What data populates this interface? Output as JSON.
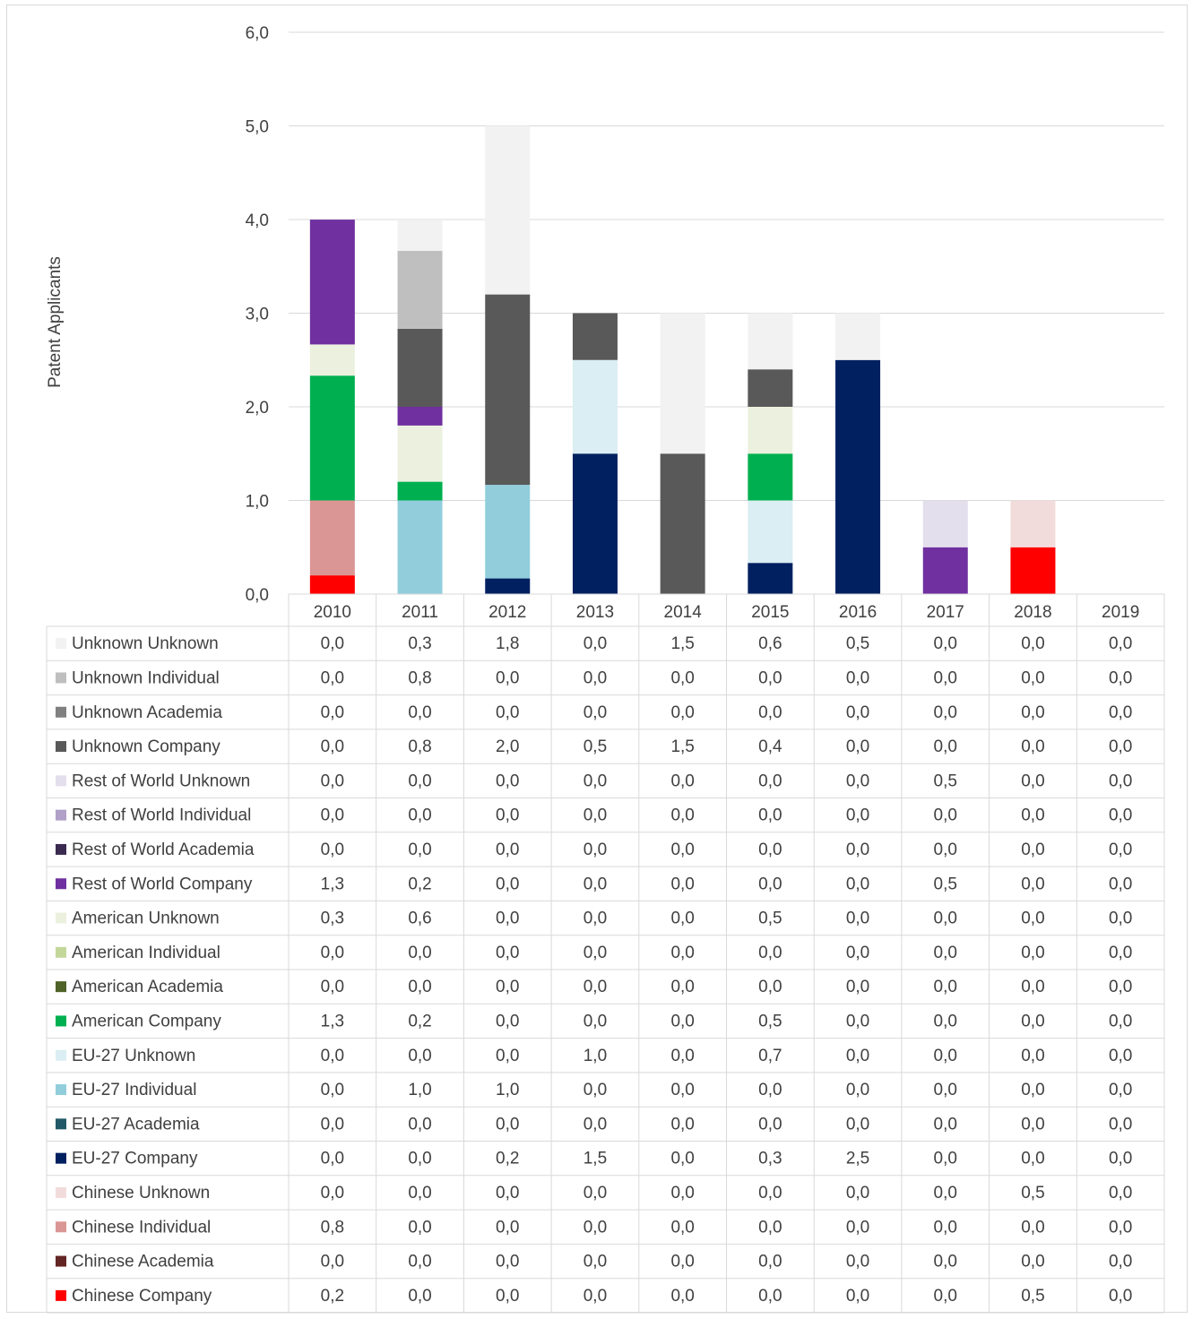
{
  "chart_data": {
    "type": "bar",
    "stacked": true,
    "ylabel": "Patent Applicants",
    "ylim": [
      0,
      6
    ],
    "yticks": [
      "0,0",
      "1,0",
      "2,0",
      "3,0",
      "4,0",
      "5,0",
      "6,0"
    ],
    "grid": true,
    "legend_placement": "data-table-left",
    "categories": [
      "2010",
      "2011",
      "2012",
      "2013",
      "2014",
      "2015",
      "2016",
      "2017",
      "2018",
      "2019"
    ],
    "series": [
      {
        "name": "Unknown Unknown",
        "color": "#f2f2f2",
        "values": [
          0.0,
          0.333,
          1.8,
          0.0,
          1.5,
          0.6,
          0.5,
          0.0,
          0.0,
          0.0
        ],
        "labels": [
          "0,0",
          "0,3",
          "1,8",
          "0,0",
          "1,5",
          "0,6",
          "0,5",
          "0,0",
          "0,0",
          "0,0"
        ]
      },
      {
        "name": "Unknown Individual",
        "color": "#bfbfbf",
        "values": [
          0.0,
          0.833,
          0.0,
          0.0,
          0.0,
          0.0,
          0.0,
          0.0,
          0.0,
          0.0
        ],
        "labels": [
          "0,0",
          "0,8",
          "0,0",
          "0,0",
          "0,0",
          "0,0",
          "0,0",
          "0,0",
          "0,0",
          "0,0"
        ]
      },
      {
        "name": "Unknown Academia",
        "color": "#808080",
        "values": [
          0.0,
          0.0,
          0.0,
          0.0,
          0.0,
          0.0,
          0.0,
          0.0,
          0.0,
          0.0
        ],
        "labels": [
          "0,0",
          "0,0",
          "0,0",
          "0,0",
          "0,0",
          "0,0",
          "0,0",
          "0,0",
          "0,0",
          "0,0"
        ]
      },
      {
        "name": "Unknown Company",
        "color": "#595959",
        "values": [
          0.0,
          0.833,
          2.033,
          0.5,
          1.5,
          0.4,
          0.0,
          0.0,
          0.0,
          0.0
        ],
        "labels": [
          "0,0",
          "0,8",
          "2,0",
          "0,5",
          "1,5",
          "0,4",
          "0,0",
          "0,0",
          "0,0",
          "0,0"
        ]
      },
      {
        "name": "Rest of World Unknown",
        "color": "#e4dfec",
        "values": [
          0.0,
          0.0,
          0.0,
          0.0,
          0.0,
          0.0,
          0.0,
          0.5,
          0.0,
          0.0
        ],
        "labels": [
          "0,0",
          "0,0",
          "0,0",
          "0,0",
          "0,0",
          "0,0",
          "0,0",
          "0,5",
          "0,0",
          "0,0"
        ]
      },
      {
        "name": "Rest of World Individual",
        "color": "#b1a0c7",
        "values": [
          0.0,
          0.0,
          0.0,
          0.0,
          0.0,
          0.0,
          0.0,
          0.0,
          0.0,
          0.0
        ],
        "labels": [
          "0,0",
          "0,0",
          "0,0",
          "0,0",
          "0,0",
          "0,0",
          "0,0",
          "0,0",
          "0,0",
          "0,0"
        ]
      },
      {
        "name": "Rest of World Academia",
        "color": "#3b2a50",
        "values": [
          0.0,
          0.0,
          0.0,
          0.0,
          0.0,
          0.0,
          0.0,
          0.0,
          0.0,
          0.0
        ],
        "labels": [
          "0,0",
          "0,0",
          "0,0",
          "0,0",
          "0,0",
          "0,0",
          "0,0",
          "0,0",
          "0,0",
          "0,0"
        ]
      },
      {
        "name": "Rest of World Company",
        "color": "#7030a0",
        "values": [
          1.333,
          0.2,
          0.0,
          0.0,
          0.0,
          0.0,
          0.0,
          0.5,
          0.0,
          0.0
        ],
        "labels": [
          "1,3",
          "0,2",
          "0,0",
          "0,0",
          "0,0",
          "0,0",
          "0,0",
          "0,5",
          "0,0",
          "0,0"
        ]
      },
      {
        "name": "American Unknown",
        "color": "#ebf1de",
        "values": [
          0.333,
          0.6,
          0.0,
          0.0,
          0.0,
          0.5,
          0.0,
          0.0,
          0.0,
          0.0
        ],
        "labels": [
          "0,3",
          "0,6",
          "0,0",
          "0,0",
          "0,0",
          "0,5",
          "0,0",
          "0,0",
          "0,0",
          "0,0"
        ]
      },
      {
        "name": "American Individual",
        "color": "#c4d79b",
        "values": [
          0.0,
          0.0,
          0.0,
          0.0,
          0.0,
          0.0,
          0.0,
          0.0,
          0.0,
          0.0
        ],
        "labels": [
          "0,0",
          "0,0",
          "0,0",
          "0,0",
          "0,0",
          "0,0",
          "0,0",
          "0,0",
          "0,0",
          "0,0"
        ]
      },
      {
        "name": "American Academia",
        "color": "#4f6228",
        "values": [
          0.0,
          0.0,
          0.0,
          0.0,
          0.0,
          0.0,
          0.0,
          0.0,
          0.0,
          0.0
        ],
        "labels": [
          "0,0",
          "0,0",
          "0,0",
          "0,0",
          "0,0",
          "0,0",
          "0,0",
          "0,0",
          "0,0",
          "0,0"
        ]
      },
      {
        "name": "American Company",
        "color": "#00b050",
        "values": [
          1.333,
          0.2,
          0.0,
          0.0,
          0.0,
          0.5,
          0.0,
          0.0,
          0.0,
          0.0
        ],
        "labels": [
          "1,3",
          "0,2",
          "0,0",
          "0,0",
          "0,0",
          "0,5",
          "0,0",
          "0,0",
          "0,0",
          "0,0"
        ]
      },
      {
        "name": "EU-27 Unknown",
        "color": "#daeef3",
        "values": [
          0.0,
          0.0,
          0.0,
          1.0,
          0.0,
          0.667,
          0.0,
          0.0,
          0.0,
          0.0
        ],
        "labels": [
          "0,0",
          "0,0",
          "0,0",
          "1,0",
          "0,0",
          "0,7",
          "0,0",
          "0,0",
          "0,0",
          "0,0"
        ]
      },
      {
        "name": "EU-27 Individual",
        "color": "#92cddc",
        "values": [
          0.0,
          1.0,
          1.0,
          0.0,
          0.0,
          0.0,
          0.0,
          0.0,
          0.0,
          0.0
        ],
        "labels": [
          "0,0",
          "1,0",
          "1,0",
          "0,0",
          "0,0",
          "0,0",
          "0,0",
          "0,0",
          "0,0",
          "0,0"
        ]
      },
      {
        "name": "EU-27 Academia",
        "color": "#215967",
        "values": [
          0.0,
          0.0,
          0.0,
          0.0,
          0.0,
          0.0,
          0.0,
          0.0,
          0.0,
          0.0
        ],
        "labels": [
          "0,0",
          "0,0",
          "0,0",
          "0,0",
          "0,0",
          "0,0",
          "0,0",
          "0,0",
          "0,0",
          "0,0"
        ]
      },
      {
        "name": "EU-27 Company",
        "color": "#002060",
        "values": [
          0.0,
          0.0,
          0.167,
          1.5,
          0.0,
          0.333,
          2.5,
          0.0,
          0.0,
          0.0
        ],
        "labels": [
          "0,0",
          "0,0",
          "0,2",
          "1,5",
          "0,0",
          "0,3",
          "2,5",
          "0,0",
          "0,0",
          "0,0"
        ]
      },
      {
        "name": "Chinese Unknown",
        "color": "#f2dcdb",
        "values": [
          0.0,
          0.0,
          0.0,
          0.0,
          0.0,
          0.0,
          0.0,
          0.0,
          0.5,
          0.0
        ],
        "labels": [
          "0,0",
          "0,0",
          "0,0",
          "0,0",
          "0,0",
          "0,0",
          "0,0",
          "0,0",
          "0,5",
          "0,0"
        ]
      },
      {
        "name": "Chinese Individual",
        "color": "#da9694",
        "values": [
          0.8,
          0.0,
          0.0,
          0.0,
          0.0,
          0.0,
          0.0,
          0.0,
          0.0,
          0.0
        ],
        "labels": [
          "0,8",
          "0,0",
          "0,0",
          "0,0",
          "0,0",
          "0,0",
          "0,0",
          "0,0",
          "0,0",
          "0,0"
        ]
      },
      {
        "name": "Chinese Academia",
        "color": "#632523",
        "values": [
          0.0,
          0.0,
          0.0,
          0.0,
          0.0,
          0.0,
          0.0,
          0.0,
          0.0,
          0.0
        ],
        "labels": [
          "0,0",
          "0,0",
          "0,0",
          "0,0",
          "0,0",
          "0,0",
          "0,0",
          "0,0",
          "0,0",
          "0,0"
        ]
      },
      {
        "name": "Chinese Company",
        "color": "#ff0000",
        "values": [
          0.2,
          0.0,
          0.0,
          0.0,
          0.0,
          0.0,
          0.0,
          0.0,
          0.5,
          0.0
        ],
        "labels": [
          "0,2",
          "0,0",
          "0,0",
          "0,0",
          "0,0",
          "0,0",
          "0,0",
          "0,0",
          "0,5",
          "0,0"
        ]
      }
    ]
  }
}
